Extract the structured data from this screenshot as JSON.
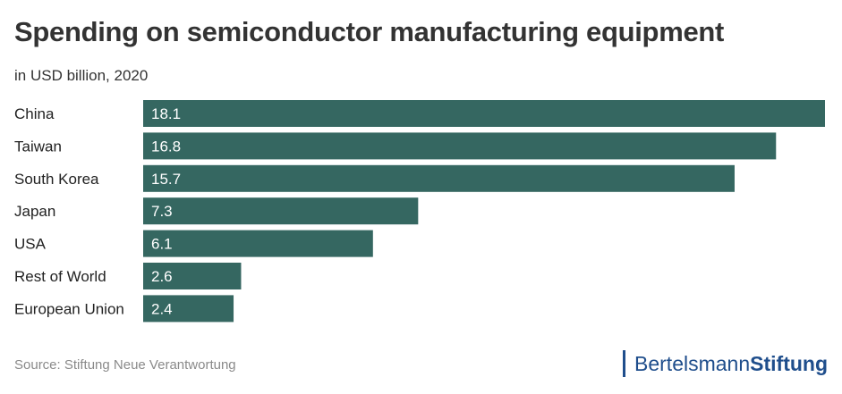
{
  "chart_data": {
    "type": "bar",
    "orientation": "horizontal",
    "title": "Spending on semiconductor manufacturing equipment",
    "subtitle": "in USD billion, 2020",
    "categories": [
      "China",
      "Taiwan",
      "South Korea",
      "Japan",
      "USA",
      "Rest of World",
      "European Union"
    ],
    "values": [
      18.1,
      16.8,
      15.7,
      7.3,
      6.1,
      2.6,
      2.4
    ],
    "value_labels": [
      "18.1",
      "16.8",
      "15.7",
      "7.3",
      "6.1",
      "2.6",
      "2.4"
    ],
    "xlim": [
      0,
      18.1
    ],
    "grid": false,
    "bar_color": "#356761",
    "label_color": "#ffffff"
  },
  "source": "Source: Stiftung Neue Verantwortung",
  "logo": {
    "light": "Bertelsmann",
    "strong": "Stiftung",
    "color": "#1f4e8c"
  }
}
